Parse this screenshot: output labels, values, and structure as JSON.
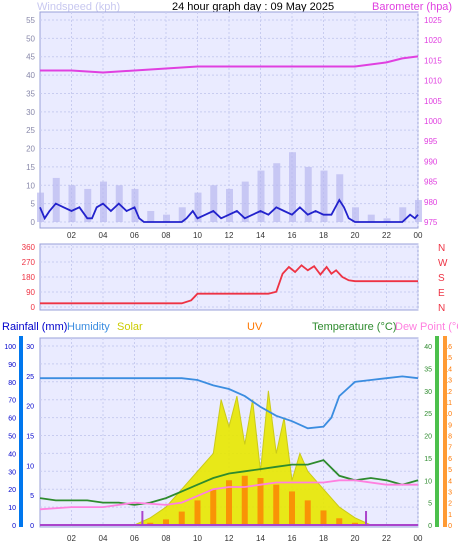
{
  "header": {
    "left": "Windspeed (kph)",
    "title": "24 hour graph day : 09 May 2025",
    "right": "Barometer (hpa)"
  },
  "legend": {
    "rainfall": "Rainfall (mm)",
    "humidity": "Humidity",
    "solar": "Solar",
    "uv": "UV",
    "temperature": "Temperature (°C)",
    "dewpoint": "Dew Point (°C)"
  },
  "colors": {
    "wind": "#2222cc",
    "gust": "#b8b8f0",
    "baro": "#e040e0",
    "dir": "#ee3344",
    "humidity": "#3b8de0",
    "solar": "#e8e800",
    "uv": "#ff7700",
    "temperature": "#2e8b2e",
    "dewpoint": "#ff80e0",
    "rain": "#aa44cc",
    "grid": "#c8ccf0",
    "panel_bg": "#eaebff"
  },
  "x_ticks": [
    "02",
    "04",
    "06",
    "08",
    "10",
    "12",
    "14",
    "16",
    "18",
    "20",
    "22",
    "00"
  ],
  "chart_data": [
    {
      "type": "line",
      "name": "wind-baro",
      "x_hours_start": 0,
      "x_hours_end": 24,
      "left_ticks": [
        "0",
        "5",
        "10",
        "15",
        "20",
        "25",
        "30",
        "35",
        "40",
        "45",
        "50",
        "55"
      ],
      "right_ticks": [
        "975",
        "980",
        "985",
        "990",
        "995",
        "1000",
        "1005",
        "1010",
        "1015",
        "1020",
        "1025"
      ],
      "ylim_left": [
        0,
        55
      ],
      "ylim_right": [
        975,
        1025
      ],
      "series": [
        {
          "key": "wind",
          "x": [
            0,
            0.3,
            0.6,
            1,
            1.5,
            2,
            2.5,
            3,
            3.3,
            3.6,
            4,
            4.5,
            5,
            5.5,
            6,
            6.3,
            6.6,
            7,
            8,
            9,
            9.3,
            9.7,
            10,
            10.5,
            11,
            11.5,
            12,
            12.5,
            13,
            13.5,
            14,
            14.5,
            15,
            15.5,
            16,
            16.5,
            17,
            17.5,
            18,
            18.5,
            19,
            19.3,
            19.6,
            20,
            21,
            22,
            23,
            23.5,
            23.8,
            24
          ],
          "y": [
            4,
            1,
            3,
            5,
            4,
            3,
            4,
            1,
            1,
            4,
            5,
            3,
            5,
            3,
            4,
            1,
            0,
            0,
            0,
            0,
            1,
            3,
            1,
            2,
            3,
            1,
            2,
            3,
            1,
            2,
            3,
            2,
            4,
            3,
            2,
            4,
            2,
            3,
            2,
            2,
            6,
            4,
            1,
            0,
            0,
            0,
            0,
            2,
            1,
            2
          ]
        },
        {
          "key": "gust",
          "x": [
            0,
            1,
            2,
            3,
            4,
            5,
            6,
            7,
            8,
            9,
            10,
            11,
            12,
            13,
            14,
            15,
            16,
            17,
            18,
            19,
            20,
            21,
            22,
            23,
            24
          ],
          "y": [
            8,
            12,
            10,
            9,
            11,
            10,
            9,
            3,
            2,
            4,
            8,
            10,
            9,
            11,
            14,
            16,
            19,
            15,
            14,
            13,
            4,
            2,
            1,
            4,
            6
          ]
        },
        {
          "key": "baro",
          "x": [
            0,
            2,
            4,
            6,
            8,
            10,
            12,
            14,
            16,
            18,
            20,
            22,
            23,
            24
          ],
          "y": [
            1012.5,
            1012.5,
            1012,
            1012.5,
            1013,
            1013.5,
            1013.5,
            1013.5,
            1013.5,
            1013.5,
            1013.5,
            1014.5,
            1015.5,
            1016
          ]
        }
      ]
    },
    {
      "type": "line",
      "name": "wind-direction",
      "left_ticks": [
        "0",
        "90",
        "180",
        "270",
        "360"
      ],
      "right_ticks": [
        "N",
        "E",
        "S",
        "W",
        "N"
      ],
      "ylim": [
        0,
        360
      ],
      "series": [
        {
          "key": "dir",
          "x": [
            0,
            9,
            9.6,
            10,
            14.5,
            15,
            15.4,
            15.8,
            16.2,
            16.6,
            17,
            17.4,
            17.8,
            18.2,
            18.5,
            18.8,
            19.2,
            19.6,
            20,
            24
          ],
          "y": [
            22,
            22,
            40,
            80,
            80,
            92,
            200,
            240,
            210,
            250,
            220,
            245,
            195,
            240,
            200,
            220,
            180,
            160,
            155,
            155
          ]
        }
      ]
    },
    {
      "type": "line",
      "name": "climate",
      "left_ticks": [
        "0",
        "10",
        "20",
        "30",
        "40",
        "50",
        "60",
        "70",
        "80",
        "90",
        "100"
      ],
      "rain_ticks": [
        "0",
        "5",
        "10",
        "15",
        "20",
        "25",
        "30"
      ],
      "temp_ticks": [
        "0",
        "5",
        "10",
        "15",
        "20",
        "25",
        "30",
        "35",
        "40"
      ],
      "uv_ticks": [
        "0",
        "1",
        "2",
        "3",
        "4",
        "5",
        "6",
        "7",
        "8",
        "9",
        "10",
        "11",
        "12",
        "13",
        "14",
        "15",
        "16"
      ],
      "series": [
        {
          "key": "humidity",
          "x": [
            0,
            2,
            4,
            6,
            8,
            9,
            10,
            11,
            12,
            13,
            14,
            15,
            16,
            17,
            18,
            18.5,
            19,
            20,
            21,
            22,
            23,
            24
          ],
          "y": [
            82,
            82,
            82,
            82,
            82,
            82,
            81,
            78,
            76,
            72,
            66,
            61,
            58,
            54,
            55,
            60,
            72,
            80,
            81,
            82,
            83,
            82
          ]
        },
        {
          "key": "temperature",
          "x": [
            0,
            1,
            2,
            3,
            4,
            5,
            6,
            7,
            8,
            9,
            10,
            11,
            12,
            13,
            14,
            15,
            16,
            17,
            18,
            19,
            20,
            21,
            22,
            23,
            24
          ],
          "y": [
            6,
            5.5,
            5.5,
            5.5,
            5,
            5,
            4.5,
            5,
            6,
            7.5,
            9,
            10.5,
            11.5,
            12,
            12.5,
            13,
            13.5,
            13.5,
            14.5,
            11,
            10,
            10.5,
            10,
            9,
            10
          ]
        },
        {
          "key": "dewpoint",
          "x": [
            0,
            2,
            4,
            6,
            8,
            9,
            10,
            11,
            12,
            13,
            14,
            15,
            16,
            17,
            18,
            19,
            20,
            22,
            24
          ],
          "y": [
            3.5,
            4,
            4,
            5,
            4.5,
            5,
            6.5,
            8,
            8.5,
            8.5,
            9,
            9.5,
            9.5,
            9.5,
            9.5,
            10,
            10,
            9,
            9
          ]
        },
        {
          "key": "uv",
          "x": [
            6.5,
            7,
            8,
            9,
            10,
            11,
            12,
            13,
            14,
            15,
            16,
            17,
            18,
            19,
            20,
            21
          ],
          "y": [
            0,
            0.2,
            0.5,
            1.2,
            2.2,
            3.2,
            4,
            4.4,
            4.2,
            3.6,
            3,
            2.2,
            1.3,
            0.6,
            0.2,
            0
          ]
        },
        {
          "key": "solar",
          "x": [
            6,
            7,
            8,
            9,
            10,
            11,
            11.5,
            12,
            12.5,
            13,
            13.5,
            14,
            14.5,
            15,
            15.5,
            16,
            16.5,
            17,
            18,
            19,
            20,
            21
          ],
          "y": [
            0,
            4,
            10,
            20,
            30,
            40,
            70,
            55,
            72,
            45,
            70,
            30,
            75,
            40,
            60,
            25,
            40,
            30,
            20,
            10,
            4,
            0
          ]
        }
      ]
    }
  ]
}
